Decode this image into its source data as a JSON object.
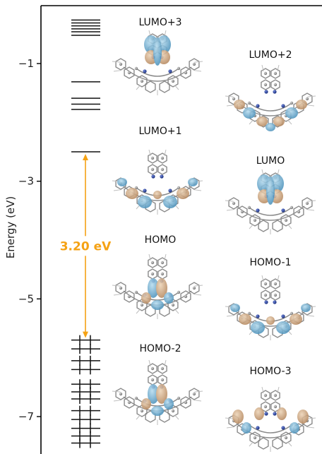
{
  "chart_data": {
    "type": "energy-level diagram",
    "ylabel": "Energy (eV)",
    "ylim": [
      -7.55,
      -0.18
    ],
    "yticks": [
      -1,
      -3,
      -5,
      -7
    ],
    "ytick_labels": [
      "−1",
      "−3",
      "−5",
      "−7"
    ],
    "unoccupied_levels": [
      -0.26,
      -0.31,
      -0.36,
      -0.41,
      -0.46,
      -0.52,
      -1.31,
      -1.59,
      -1.69,
      -1.78,
      -2.5
    ],
    "occupied_levels": [
      -5.7,
      -5.85,
      -6.05,
      -6.2,
      -6.45,
      -6.58,
      -6.7,
      -6.9,
      -7.05,
      -7.2,
      -7.33,
      -7.45
    ],
    "gap": {
      "label": "3.20 eV",
      "from": -5.7,
      "to": -2.5
    },
    "orbitals": [
      {
        "label": "LUMO+3"
      },
      {
        "label": "LUMO+2"
      },
      {
        "label": "LUMO+1"
      },
      {
        "label": "LUMO"
      },
      {
        "label": "HOMO"
      },
      {
        "label": "HOMO-1"
      },
      {
        "label": "HOMO-2"
      },
      {
        "label": "HOMO-3"
      }
    ],
    "colors": {
      "level": "#111111",
      "gap_arrow": "#f5a214",
      "lobe_positive": "#c79a6d",
      "lobe_negative": "#5fa8cf",
      "atom_carbon": "#8e8e8e",
      "atom_nitrogen": "#1f3c9e",
      "atom_hydrogen": "#e6e6e6"
    }
  }
}
